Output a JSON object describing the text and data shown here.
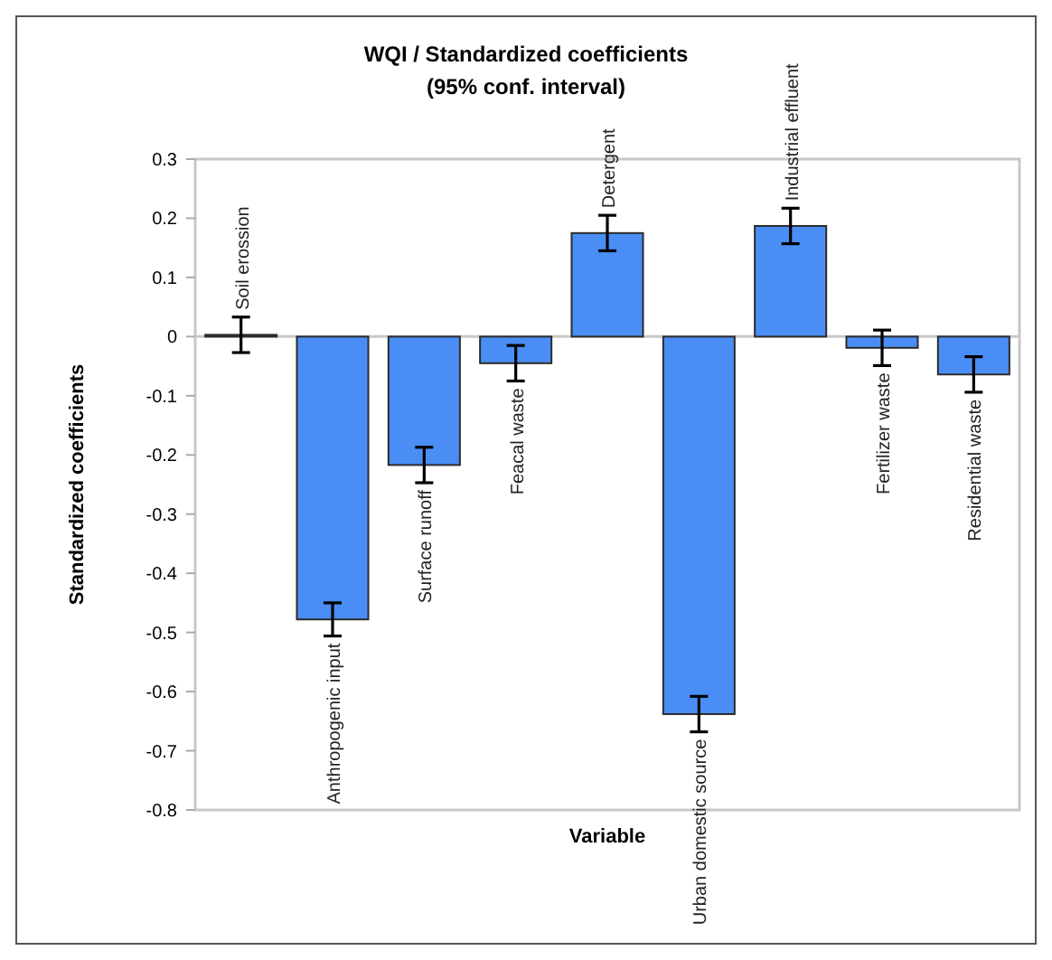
{
  "chart_data": {
    "type": "bar",
    "title": "WQI / Standardized coefficients",
    "subtitle": "(95% conf. interval)",
    "xlabel": "Variable",
    "ylabel": "Standardized coefficients",
    "categories": [
      "Soil erossion",
      "Anthropogenic input",
      "Surface runoff",
      "Feacal waste",
      "Detergent",
      "Urban domestic source",
      "Industrial effluent",
      "Fertilizer waste",
      "Residential waste"
    ],
    "values": [
      0.003,
      -0.478,
      -0.217,
      -0.045,
      0.175,
      -0.638,
      0.187,
      -0.019,
      -0.064
    ],
    "errors": [
      0.03,
      0.028,
      0.03,
      0.03,
      0.03,
      0.03,
      0.03,
      0.03,
      0.03
    ],
    "color": "#4a8ef5",
    "ylim": [
      -0.8,
      0.3
    ],
    "yticks": [
      -0.8,
      -0.7,
      -0.6,
      -0.5,
      -0.4,
      -0.3,
      -0.2,
      -0.1,
      0,
      0.1,
      0.2,
      0.3
    ],
    "grid": false
  }
}
